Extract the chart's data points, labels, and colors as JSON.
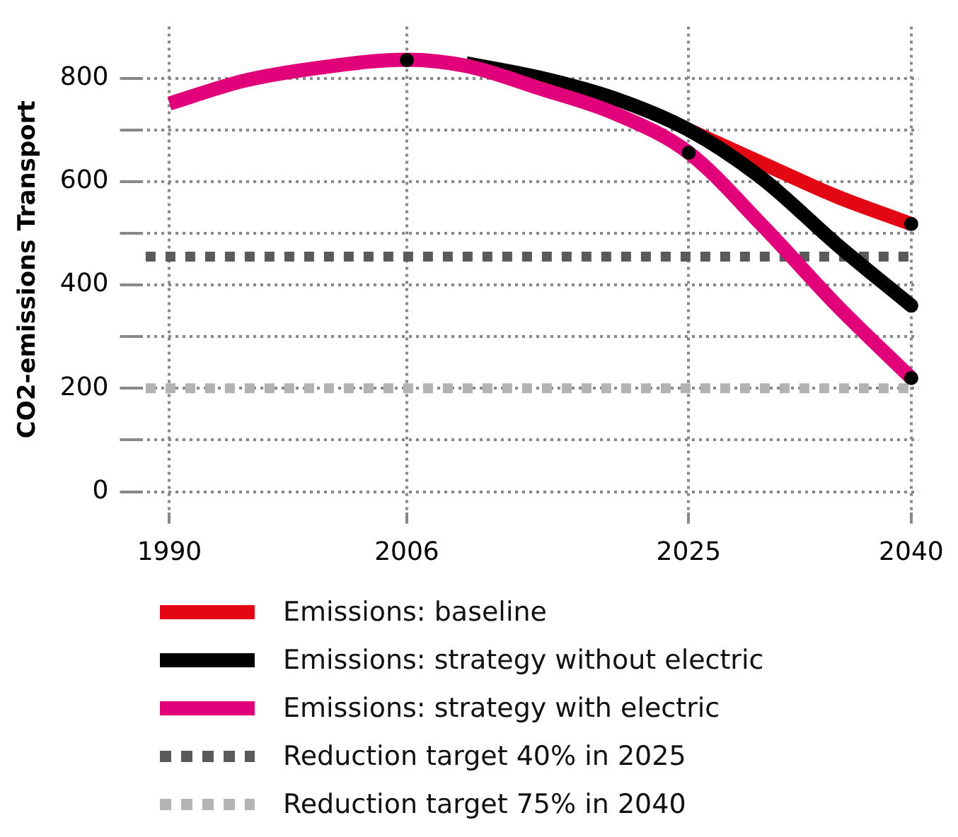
{
  "chart_data": {
    "type": "line",
    "ylabel": "CO2-emissions Transport",
    "xlim": [
      1988,
      2040.5
    ],
    "xticks": [
      1990,
      2006,
      2025,
      2040
    ],
    "ylim": [
      -40,
      900
    ],
    "yticks": [
      0,
      {
        "value": 100,
        "label": null
      },
      200,
      {
        "value": 300,
        "label": null
      },
      400,
      {
        "value": 500,
        "label": null
      },
      600,
      {
        "value": 700,
        "label": null
      },
      800
    ],
    "grid": true,
    "legend": "bottom",
    "marker": "none",
    "line_style": "solid",
    "series": [
      {
        "name": "Emissions: baseline",
        "color": "#e30613",
        "x": [
          2025,
          2030,
          2035,
          2040
        ],
        "values": [
          700,
          635,
          571,
          518
        ]
      },
      {
        "name": "Emissions: strategy without electric",
        "color": "#000000",
        "x": [
          2010,
          2015,
          2020,
          2025,
          2030,
          2035,
          2040
        ],
        "values": [
          829,
          801,
          761,
          700,
          605,
          478,
          360
        ]
      },
      {
        "name": "Emissions: strategy with electric",
        "color": "#e2007a",
        "x": [
          1990,
          1995,
          2000,
          2006,
          2010,
          2015,
          2020,
          2025,
          2030,
          2035,
          2040
        ],
        "values": [
          751,
          795,
          820,
          836,
          824,
          780,
          732,
          656,
          514,
          360,
          220
        ]
      },
      {
        "type": "scatter",
        "marker": "circle",
        "color": "#000000",
        "x": [
          2006,
          2025,
          2040,
          2040,
          2040
        ],
        "values": [
          835,
          656,
          518,
          360,
          220
        ]
      }
    ],
    "ref_lines": [
      {
        "axis": "y",
        "value": 455,
        "label": "Reduction target 40% in 2025",
        "color": "#5a5a5a",
        "line_style": "dotted"
      },
      {
        "axis": "y",
        "value": 200,
        "label": "Reduction target 75% in 2040",
        "color": "#b3b3b3",
        "line_style": "dotted"
      }
    ]
  }
}
